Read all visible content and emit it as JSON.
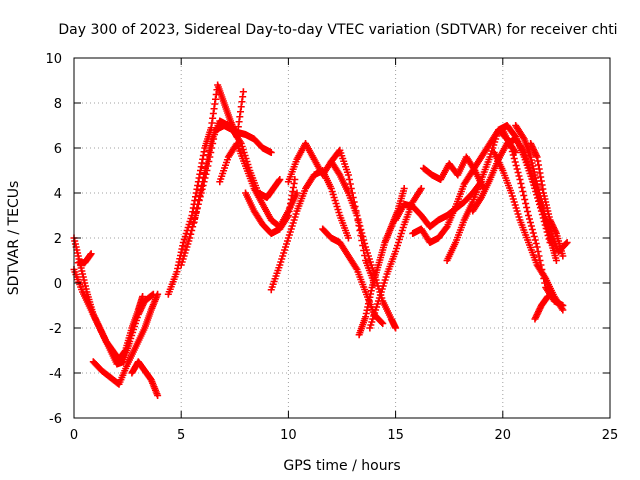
{
  "chart_data": {
    "type": "scatter",
    "title": "Day 300 of 2023, Sidereal Day-to-day VTEC variation (SDTVAR) for receiver chti",
    "xlabel": "GPS time / hours",
    "ylabel": "SDTVAR / TECUs",
    "xlim": [
      0,
      25
    ],
    "ylim": [
      -6,
      10
    ],
    "xticks": [
      0,
      5,
      10,
      15,
      20,
      25
    ],
    "yticks": [
      -6,
      -4,
      -2,
      0,
      2,
      4,
      6,
      8,
      10
    ],
    "grid": true,
    "marker": "+",
    "series": [
      {
        "name": "SDTVAR",
        "color": "#ff0000",
        "traces": [
          {
            "x": [
              0.0,
              0.3,
              0.6,
              0.9,
              1.2,
              1.5,
              1.8,
              2.1,
              2.4,
              2.7,
              3.0,
              3.2
            ],
            "y": [
              2.0,
              0.8,
              -0.4,
              -1.4,
              -2.0,
              -2.6,
              -3.0,
              -3.4,
              -3.0,
              -2.0,
              -1.2,
              -0.6
            ]
          },
          {
            "x": [
              0.0,
              0.4,
              0.8,
              1.2,
              1.6,
              2.0,
              2.3,
              2.6,
              3.0,
              3.3,
              3.7
            ],
            "y": [
              0.6,
              -0.4,
              -1.2,
              -2.0,
              -2.8,
              -3.6,
              -3.5,
              -2.6,
              -1.4,
              -0.8,
              -0.5
            ]
          },
          {
            "x": [
              0.9,
              1.3,
              1.7,
              2.1,
              2.5,
              2.9,
              3.3,
              3.6,
              3.9
            ],
            "y": [
              -3.5,
              -3.9,
              -4.2,
              -4.5,
              -3.6,
              -2.8,
              -2.0,
              -1.2,
              -0.5
            ]
          },
          {
            "x": [
              2.7,
              3.0,
              3.3,
              3.6,
              3.9
            ],
            "y": [
              -4.0,
              -3.5,
              -3.9,
              -4.3,
              -5.0
            ]
          },
          {
            "x": [
              0.2,
              0.5,
              0.8
            ],
            "y": [
              0.9,
              0.9,
              1.3
            ]
          },
          {
            "x": [
              4.4,
              4.8,
              5.1,
              5.5,
              5.8,
              6.1,
              6.4,
              6.7,
              7.0,
              7.3,
              7.6,
              7.9
            ],
            "y": [
              -0.5,
              0.5,
              1.8,
              3.0,
              4.5,
              6.0,
              6.9,
              8.8,
              8.0,
              7.2,
              6.5,
              8.5
            ]
          },
          {
            "x": [
              5.0,
              5.4,
              5.8,
              6.2,
              6.6,
              7.0,
              7.4,
              7.8,
              8.2,
              8.6,
              9.0,
              9.3,
              9.6
            ],
            "y": [
              0.8,
              2.0,
              3.5,
              5.0,
              6.8,
              7.0,
              6.8,
              6.2,
              5.0,
              4.0,
              3.8,
              4.2,
              4.6
            ]
          },
          {
            "x": [
              5.6,
              6.0,
              6.4,
              6.8,
              7.2,
              7.6,
              8.0,
              8.4,
              8.8,
              9.2
            ],
            "y": [
              2.7,
              4.5,
              6.3,
              7.2,
              7.0,
              6.7,
              6.6,
              6.4,
              6.0,
              5.8
            ]
          },
          {
            "x": [
              6.8,
              7.2,
              7.6,
              8.0,
              8.4,
              8.8,
              9.2,
              9.6,
              10.0,
              10.4
            ],
            "y": [
              4.5,
              5.6,
              6.2,
              5.2,
              4.2,
              3.5,
              2.8,
              2.5,
              3.2,
              4.0
            ]
          },
          {
            "x": [
              8.0,
              8.4,
              8.8,
              9.2,
              9.6,
              10.0,
              10.3
            ],
            "y": [
              4.0,
              3.2,
              2.6,
              2.2,
              2.4,
              3.0,
              4.6
            ]
          },
          {
            "x": [
              9.2,
              9.6,
              10.0,
              10.4,
              10.8,
              11.2,
              11.6,
              12.0,
              12.4,
              12.8
            ],
            "y": [
              -0.3,
              0.8,
              2.0,
              3.2,
              4.2,
              4.8,
              5.0,
              4.2,
              3.0,
              2.0
            ]
          },
          {
            "x": [
              10.0,
              10.4,
              10.8,
              11.2,
              11.6,
              12.0,
              12.4,
              12.8,
              13.2,
              13.6,
              14.0
            ],
            "y": [
              4.5,
              5.5,
              6.2,
              5.5,
              4.8,
              5.4,
              5.9,
              4.8,
              3.0,
              1.0,
              0.0
            ]
          },
          {
            "x": [
              11.6,
              12.0,
              12.4,
              12.8,
              13.2,
              13.6,
              14.0,
              14.4
            ],
            "y": [
              2.4,
              2.0,
              1.8,
              1.2,
              0.6,
              -0.4,
              -1.4,
              -1.8
            ]
          },
          {
            "x": [
              12.0,
              12.4,
              12.8,
              13.2,
              13.6,
              14.0,
              14.4,
              14.8,
              15.0
            ],
            "y": [
              5.4,
              4.8,
              4.0,
              3.0,
              1.6,
              0.4,
              -0.8,
              -1.6,
              -2.0
            ]
          },
          {
            "x": [
              13.3,
              13.6,
              13.9,
              14.2,
              14.5,
              14.8,
              15.1,
              15.4
            ],
            "y": [
              -2.3,
              -1.5,
              -0.2,
              0.8,
              1.8,
              2.5,
              3.2,
              4.2
            ]
          },
          {
            "x": [
              13.8,
              14.2,
              14.6,
              15.0,
              15.4,
              15.8,
              16.2
            ],
            "y": [
              -2.0,
              -0.8,
              0.4,
              1.4,
              2.6,
              3.6,
              4.2
            ]
          },
          {
            "x": [
              15.0,
              15.4,
              15.8,
              16.2,
              16.6,
              17.0,
              17.4,
              17.8,
              18.2,
              18.6,
              19.0
            ],
            "y": [
              2.8,
              3.5,
              3.4,
              3.0,
              2.5,
              2.8,
              3.0,
              3.3,
              3.6,
              4.0,
              4.5
            ]
          },
          {
            "x": [
              15.8,
              16.2,
              16.6,
              17.0,
              17.4,
              17.8,
              18.2,
              18.6,
              19.0,
              19.4,
              19.8,
              20.2,
              20.6
            ],
            "y": [
              2.2,
              2.4,
              1.8,
              2.0,
              2.5,
              3.4,
              4.4,
              5.0,
              5.6,
              6.2,
              6.8,
              6.4,
              5.8
            ]
          },
          {
            "x": [
              16.3,
              16.7,
              17.1,
              17.5,
              17.9,
              18.3,
              18.7,
              19.1
            ],
            "y": [
              5.1,
              4.8,
              4.6,
              5.3,
              4.8,
              5.6,
              5.0,
              4.2
            ]
          },
          {
            "x": [
              17.4,
              17.8,
              18.2,
              18.6,
              19.0,
              19.4,
              19.8,
              20.2,
              20.6,
              21.0,
              21.4,
              21.8,
              22.2
            ],
            "y": [
              1.0,
              1.8,
              2.8,
              3.6,
              4.6,
              5.6,
              6.8,
              7.0,
              6.5,
              5.6,
              4.5,
              3.2,
              1.8
            ]
          },
          {
            "x": [
              18.6,
              19.0,
              19.4,
              19.8,
              20.2,
              20.6,
              21.0,
              21.4,
              21.8,
              22.2,
              22.6,
              23.0
            ],
            "y": [
              3.2,
              3.8,
              4.6,
              5.5,
              6.2,
              6.4,
              5.8,
              4.6,
              3.4,
              2.4,
              1.4,
              1.8
            ]
          },
          {
            "x": [
              19.6,
              20.0,
              20.4,
              20.8,
              21.2,
              21.6,
              22.0,
              22.4,
              22.8
            ],
            "y": [
              5.8,
              5.0,
              4.0,
              2.8,
              1.8,
              0.8,
              0.2,
              -0.6,
              -1.2
            ]
          },
          {
            "x": [
              20.0,
              20.4,
              20.8,
              21.2,
              21.6,
              22.0,
              22.4,
              22.8
            ],
            "y": [
              6.8,
              6.0,
              4.6,
              3.0,
              1.6,
              -0.2,
              -0.8,
              -1.0
            ]
          },
          {
            "x": [
              20.6,
              21.0,
              21.3,
              21.6,
              21.9,
              22.2,
              22.5
            ],
            "y": [
              7.0,
              6.4,
              5.6,
              4.4,
              3.2,
              2.0,
              1.0
            ]
          },
          {
            "x": [
              21.3,
              21.6,
              21.9,
              22.2,
              22.5,
              22.8
            ],
            "y": [
              6.2,
              5.6,
              4.0,
              2.8,
              2.2,
              1.2
            ]
          },
          {
            "x": [
              21.5,
              21.8,
              22.1
            ],
            "y": [
              -1.6,
              -1.0,
              -0.6
            ]
          }
        ]
      }
    ]
  }
}
